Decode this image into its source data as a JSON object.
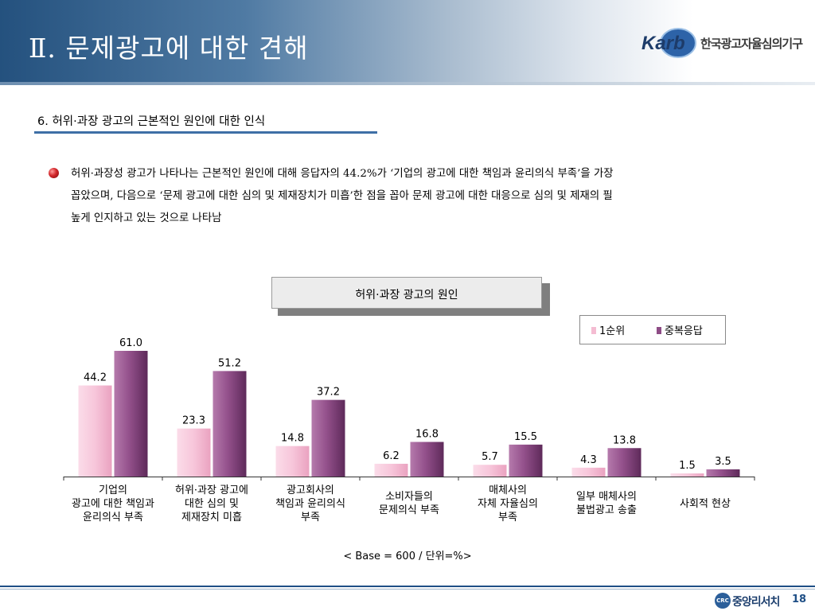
{
  "header": {
    "title": "Ⅱ. 문제광고에 대한 견해",
    "logo_mark": "Karb",
    "logo_org": "한국광고자율심의기구"
  },
  "section": {
    "title": "6. 허위·과장 광고의 근본적인 원인에 대한 인식"
  },
  "body": {
    "lines": [
      "허위·과장성 광고가 나타나는 근본적인 원인에 대해 응답자의 44.2%가 ‘기업의 광고에 대한 책임과 윤리의식 부족’을 가장",
      "꼽았으며, 다음으로 ‘문제 광고에 대한 심의 및 제재장치가 미흡’한 점을 꼽아 문제 광고에 대한 대응으로 심의 및 제재의 필",
      "높게 인지하고 있는 것으로 나타남"
    ]
  },
  "chart_data": {
    "type": "bar",
    "title": "허위·과장 광고의 원인",
    "categories": [
      "기업의\n광고에 대한 책임과\n윤리의식 부족",
      "허위·과장 광고에\n대한 심의 및\n제재장치 미흡",
      "광고회사의\n책임과 윤리의식\n부족",
      "소비자들의\n문제의식 부족",
      "매체사의\n자체 자율심의\n부족",
      "일부 매체사의\n불법광고 송출",
      "사회적 현상"
    ],
    "series": [
      {
        "name": "1순위",
        "values": [
          44.2,
          23.3,
          14.8,
          6.2,
          5.7,
          4.3,
          1.5
        ]
      },
      {
        "name": "중복응답",
        "values": [
          61.0,
          51.2,
          37.2,
          16.8,
          15.5,
          13.8,
          3.5
        ]
      }
    ],
    "labels": [
      [
        "44.2",
        "23.3",
        "14.8",
        "6.2",
        "5.7",
        "4.3",
        "1.5"
      ],
      [
        "61.0",
        "51.2",
        "37.2",
        "16.8",
        "15.5",
        "13.8",
        "3.5"
      ]
    ],
    "ylim": [
      0,
      61
    ],
    "legend_position": "top-right",
    "grid": false,
    "colors": {
      "series1": "#f4bcd2",
      "series2": "#8e4c86"
    },
    "base_note": "< Base = 600 / 단위=%>"
  },
  "footer": {
    "company_mark": "CRC",
    "company": "중앙리서치",
    "page": "18"
  }
}
